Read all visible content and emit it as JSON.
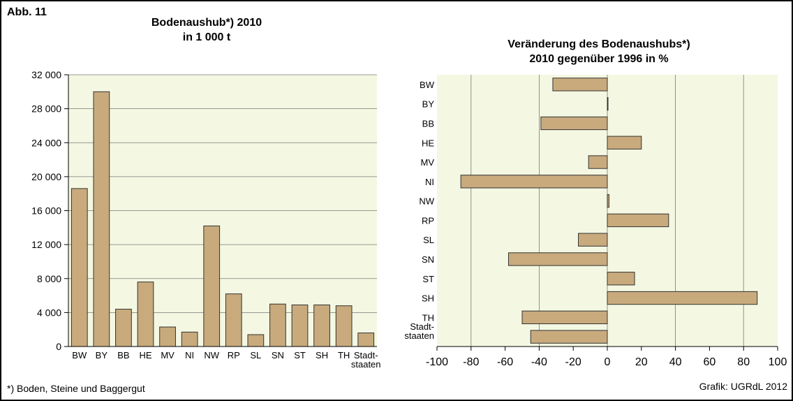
{
  "figure_label": "Abb. 11",
  "footnote": "*) Boden, Steine und Baggergut",
  "credit": "Grafik: UGRdL 2012",
  "chart_data": [
    {
      "type": "bar",
      "title": "Bodenaushub*) 2010",
      "subtitle": "in 1 000 t",
      "categories": [
        "BW",
        "BY",
        "BB",
        "HE",
        "MV",
        "NI",
        "NW",
        "RP",
        "SL",
        "SN",
        "ST",
        "SH",
        "TH",
        "Stadt-\nstaaten"
      ],
      "values": [
        18600,
        30000,
        4400,
        7600,
        2300,
        1700,
        14200,
        6200,
        1400,
        5000,
        4900,
        4900,
        4800,
        1600
      ],
      "color": "#c8aa7d",
      "ylim": [
        0,
        32000
      ],
      "yticks": [
        0,
        {
          "value": 4000,
          "label": "4 000"
        },
        {
          "value": 8000,
          "label": "8 000"
        },
        {
          "value": 12000,
          "label": "12 000"
        },
        {
          "value": 16000,
          "label": "16 000"
        },
        {
          "value": 20000,
          "label": "20 000"
        },
        {
          "value": 24000,
          "label": "24 000"
        },
        {
          "value": 28000,
          "label": "28 000"
        },
        {
          "value": 32000,
          "label": "32 000"
        }
      ],
      "grid": true
    },
    {
      "type": "barh",
      "title": "Veränderung des Bodenaushubs*)",
      "subtitle": "2010 gegenüber 1996 in %",
      "categories": [
        "BW",
        "BY",
        "BB",
        "HE",
        "MV",
        "NI",
        "NW",
        "RP",
        "SL",
        "SN",
        "ST",
        "SH",
        "TH",
        "Stadt-\nstaaten"
      ],
      "values": [
        -32,
        0.3,
        -39,
        20,
        -11,
        -86,
        1,
        36,
        -17,
        -58,
        16,
        88,
        -50,
        -45
      ],
      "color": "#c8aa7d",
      "xlim": [
        -100,
        100
      ],
      "xticks": [
        -100,
        -80,
        -60,
        -40,
        -20,
        0,
        20,
        40,
        60,
        80,
        100
      ],
      "grid": true
    }
  ]
}
